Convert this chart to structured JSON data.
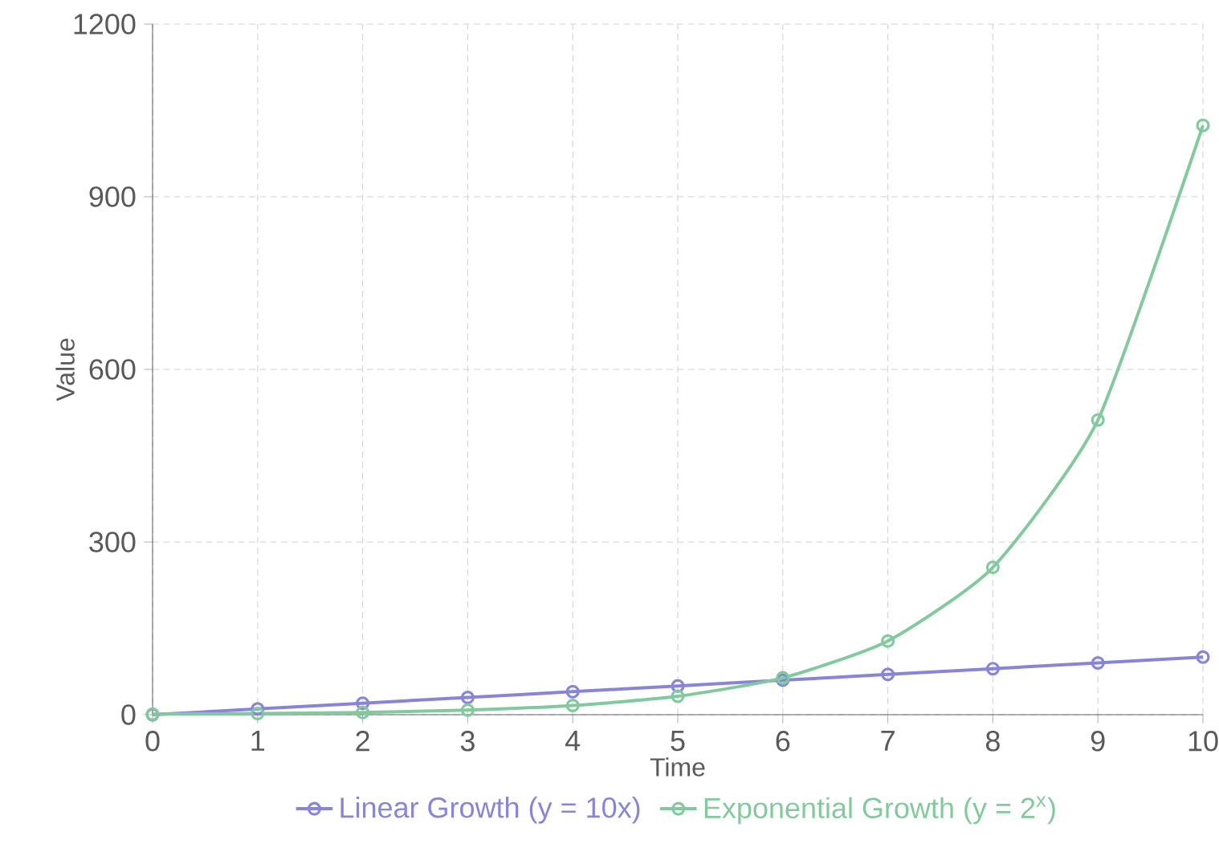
{
  "chart_data": {
    "type": "line",
    "xlabel": "Time",
    "ylabel": "Value",
    "x": [
      0,
      1,
      2,
      3,
      4,
      5,
      6,
      7,
      8,
      9,
      10
    ],
    "series": [
      {
        "name": "Linear Growth (y = 10x)",
        "color": "#8884d8",
        "values": [
          0,
          10,
          20,
          30,
          40,
          50,
          60,
          70,
          80,
          90,
          100
        ]
      },
      {
        "name": "Exponential Growth (y = 2$^{x}$)",
        "color": "#82ca9d",
        "values": [
          1,
          2,
          4,
          8,
          16,
          32,
          64,
          128,
          256,
          512,
          1024
        ]
      }
    ],
    "xlim": [
      0,
      10
    ],
    "xticks": [
      0,
      1,
      2,
      3,
      4,
      5,
      6,
      7,
      8,
      9,
      10
    ],
    "ylim": [
      0,
      1200
    ],
    "yticks": [
      0,
      300,
      600,
      900,
      1200
    ],
    "grid": true,
    "legend": "bottom",
    "marker": "circle",
    "line_style": "solid"
  }
}
